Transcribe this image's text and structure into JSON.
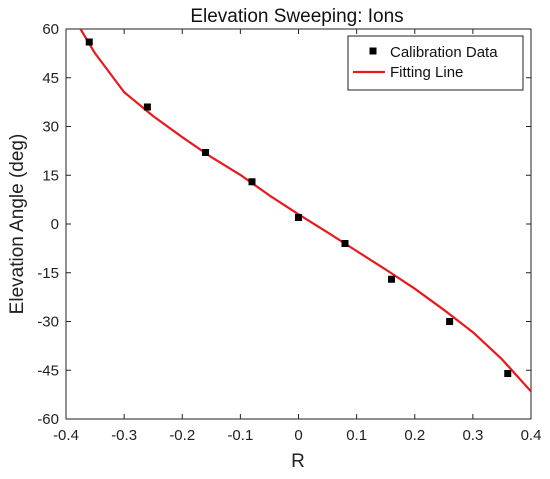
{
  "chart_data": {
    "type": "scatter",
    "title": "Elevation Sweeping: Ions",
    "xlabel": "R",
    "ylabel": "Elevation Angle (deg)",
    "xlim": [
      -0.4,
      0.4
    ],
    "ylim": [
      -60,
      60
    ],
    "xticks": [
      -0.4,
      -0.3,
      -0.2,
      -0.1,
      0,
      0.1,
      0.2,
      0.3,
      0.4
    ],
    "yticks": [
      -60,
      -45,
      -30,
      -15,
      0,
      15,
      30,
      45,
      60
    ],
    "xtick_labels": [
      "-0.4",
      "-0.3",
      "-0.2",
      "-0.1",
      "0",
      "0.1",
      "0.2",
      "0.3",
      "0.4"
    ],
    "ytick_labels": [
      "-60",
      "-45",
      "-30",
      "-15",
      "0",
      "15",
      "30",
      "45",
      "60"
    ],
    "grid": false,
    "legend_position": "top-right",
    "series": [
      {
        "name": "Calibration Data",
        "kind": "scatter",
        "marker": "square",
        "color": "#000000",
        "x": [
          -0.36,
          -0.26,
          -0.16,
          -0.08,
          0.0,
          0.08,
          0.16,
          0.26,
          0.36
        ],
        "y": [
          56,
          36,
          22,
          13,
          2,
          -6,
          -17,
          -30,
          -46
        ]
      },
      {
        "name": "Fitting Line",
        "kind": "line",
        "color": "#e8191c",
        "x": [
          -0.375,
          -0.35,
          -0.3,
          -0.25,
          -0.2,
          -0.15,
          -0.1,
          -0.05,
          0.0,
          0.05,
          0.1,
          0.15,
          0.2,
          0.25,
          0.3,
          0.35,
          0.4
        ],
        "y": [
          60.0,
          52.5,
          40.6,
          33.2,
          26.7,
          20.6,
          15.1,
          8.8,
          3.0,
          -2.6,
          -8.3,
          -14.0,
          -19.9,
          -26.4,
          -33.3,
          -41.6,
          -51.5
        ]
      }
    ]
  }
}
